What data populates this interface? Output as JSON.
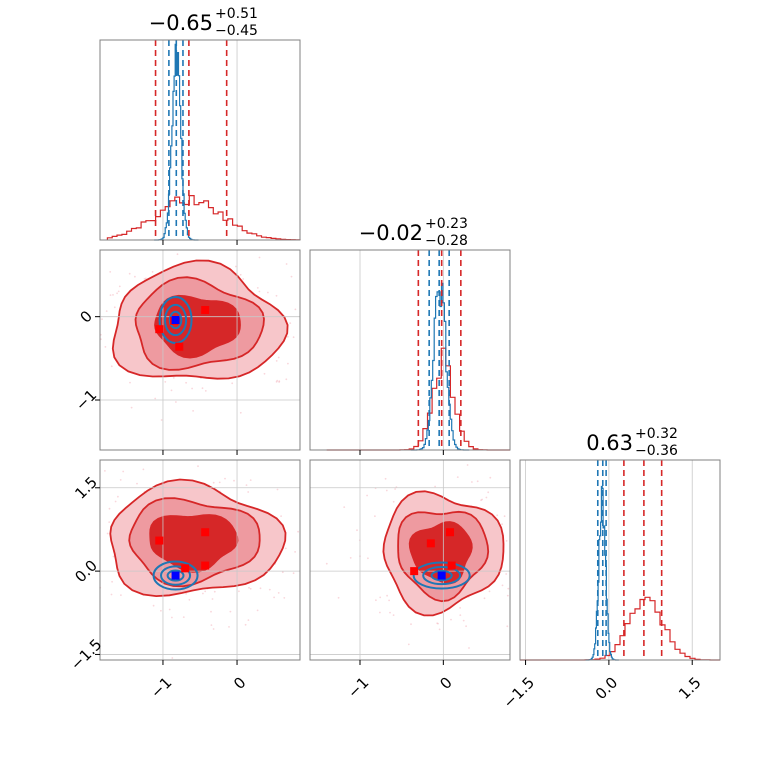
{
  "chart_data": {
    "type": "corner",
    "colors": {
      "red": "#d62728",
      "blue": "#1f77b4",
      "pin_red": "#ff0000",
      "pin_blue": "#0000ff",
      "grid": "#c8c8c8"
    },
    "axes_ranges": {
      "p0": [
        -1.85,
        0.85
      ],
      "p1": [
        -1.6,
        0.8
      ],
      "p2": [
        -1.6,
        2.0
      ]
    },
    "titles": [
      {
        "main": "−0.65",
        "sup": "+0.51",
        "sub": "−0.45"
      },
      {
        "main": "−0.02",
        "sup": "+0.23",
        "sub": "−0.28"
      },
      {
        "main": "0.63",
        "sup": "+0.32",
        "sub": "−0.36"
      }
    ],
    "ticks": {
      "p0": {
        "values": [
          -1,
          0
        ],
        "labels": [
          "−1",
          "0"
        ]
      },
      "p1": {
        "values": [
          -1,
          0
        ],
        "labels": [
          "−1",
          "0"
        ]
      },
      "p2": {
        "values": [
          -1.5,
          0.0,
          1.5
        ],
        "labels": [
          "−1.5",
          "0.0",
          "1.5"
        ]
      }
    },
    "quantile_lines": {
      "red": [
        [
          -1.1,
          -0.65,
          -0.14
        ],
        [
          -0.3,
          -0.02,
          0.21
        ],
        [
          0.27,
          0.63,
          0.95
        ]
      ],
      "blue": [
        [
          -0.92,
          -0.82,
          -0.73
        ],
        [
          -0.17,
          -0.05,
          0.07
        ],
        [
          -0.2,
          -0.11,
          -0.05
        ]
      ]
    },
    "hist_red": [
      {
        "x": [
          -1.75,
          -0.1
        ],
        "mean": -0.65,
        "sd": 0.45,
        "peak_frac": 0.2
      },
      {
        "x": [
          -1.4,
          -0.6
        ],
        "mean": 0.0,
        "sd": 0.13,
        "peak_frac": 0.45,
        "x_range": [
          -1.4,
          0.8
        ]
      },
      {
        "mean": 0.68,
        "sd": 0.3,
        "peak_frac": 0.32,
        "x_range": [
          -1.6,
          2.0
        ]
      }
    ],
    "hist_blue": [
      {
        "mean": -0.82,
        "sd": 0.06,
        "peak_frac": 0.9
      },
      {
        "mean": -0.04,
        "sd": 0.07,
        "peak_frac": 0.85
      },
      {
        "mean": -0.12,
        "sd": 0.06,
        "peak_frac": 0.82
      }
    ],
    "red_points_10": [
      [
        -1.05,
        -0.15
      ],
      [
        -0.85,
        -0.05
      ],
      [
        -0.43,
        0.08
      ],
      [
        -0.78,
        -0.36
      ]
    ],
    "blue_point_10": [
      -0.83,
      -0.04
    ],
    "red_points_20": [
      [
        -1.05,
        0.55
      ],
      [
        -0.43,
        0.7
      ],
      [
        -0.43,
        0.1
      ],
      [
        -0.7,
        0.05
      ]
    ],
    "blue_point_20": [
      -0.83,
      -0.08
    ],
    "red_points_21": [
      [
        -0.15,
        0.5
      ],
      [
        0.08,
        0.7
      ],
      [
        0.1,
        0.1
      ],
      [
        -0.35,
        0.0
      ]
    ],
    "blue_point_21": [
      -0.02,
      -0.08
    ]
  }
}
